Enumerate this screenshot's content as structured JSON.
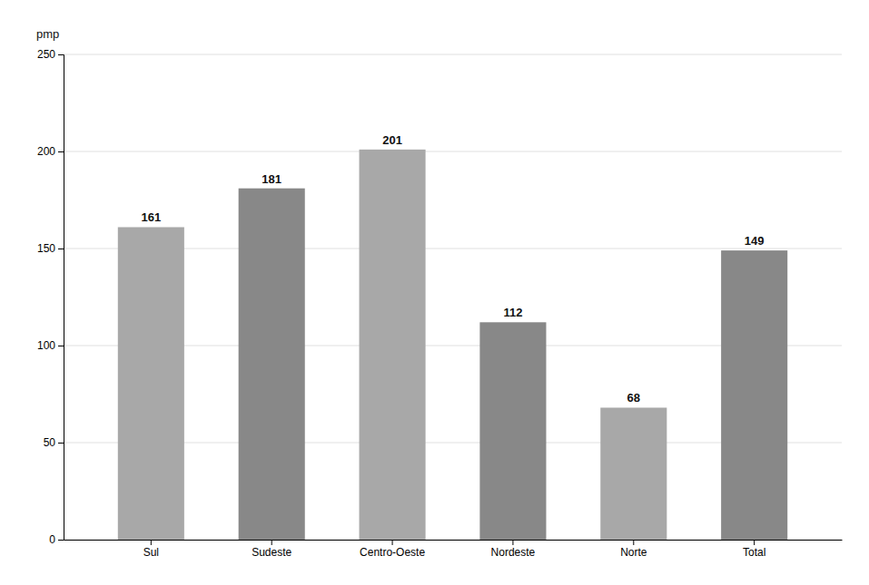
{
  "chart_data": {
    "type": "bar",
    "ylabel": "pmp",
    "categories": [
      "Sul",
      "Sudeste",
      "Centro-Oeste",
      "Nordeste",
      "Norte",
      "Total"
    ],
    "values": [
      161,
      181,
      201,
      112,
      68,
      149
    ],
    "colors": [
      "#a8a8a8",
      "#888888",
      "#a8a8a8",
      "#888888",
      "#a8a8a8",
      "#888888"
    ],
    "ylim": [
      0,
      250
    ],
    "yticks": [
      0,
      50,
      100,
      150,
      200,
      250
    ],
    "grid": true,
    "data_labels": true
  }
}
